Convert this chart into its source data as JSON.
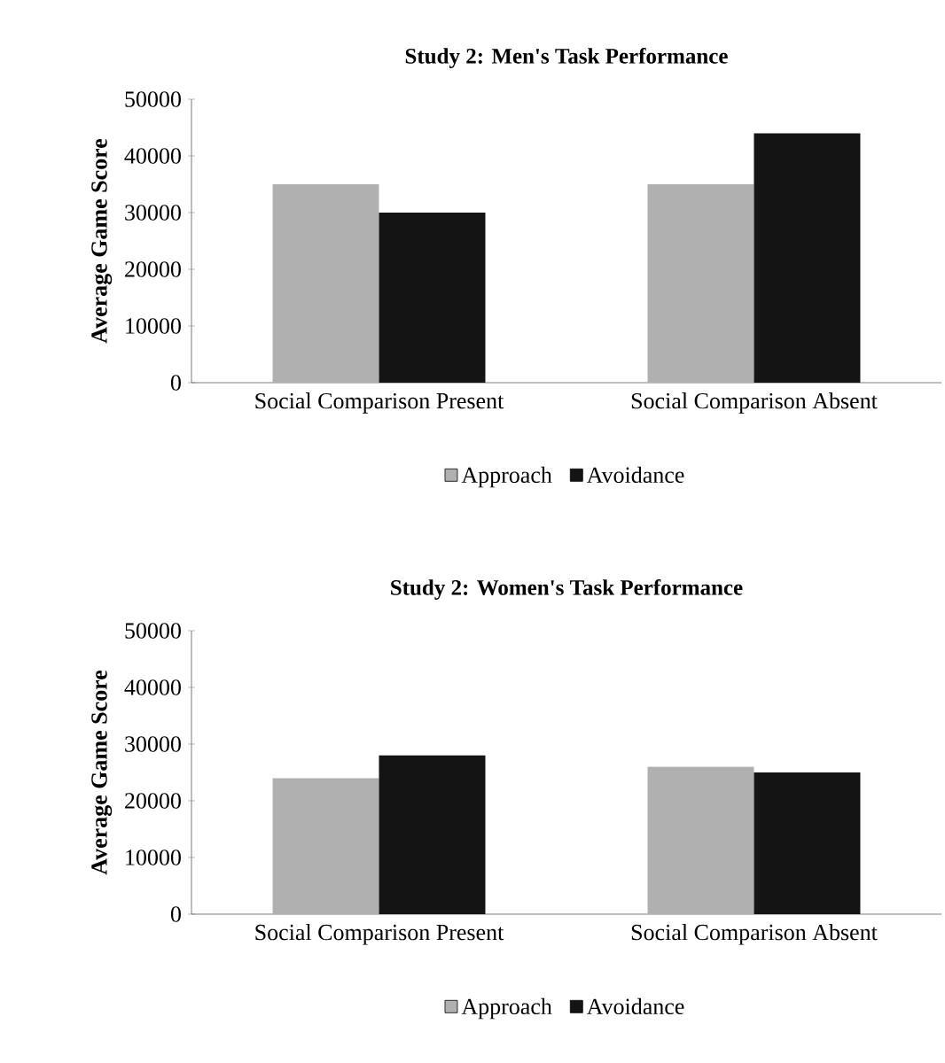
{
  "chart_data": [
    {
      "type": "bar",
      "title": "Study 2: Men's Task Performance",
      "ylabel": "Average Game Score",
      "categories": [
        "Social Comparison Present",
        "Social Comparison Absent"
      ],
      "series": [
        {
          "name": "Approach",
          "color": "#b0b0b0",
          "values": [
            35000,
            35000
          ]
        },
        {
          "name": "Avoidance",
          "color": "#141414",
          "values": [
            30000,
            44000
          ]
        }
      ],
      "ylim": [
        0,
        50000
      ],
      "yticks": [
        0,
        10000,
        20000,
        30000,
        40000,
        50000
      ],
      "legend": "bottom"
    },
    {
      "type": "bar",
      "title": "Study 2: Women's Task Performance",
      "ylabel": "Average Game Score",
      "categories": [
        "Social Comparison Present",
        "Social Comparison Absent"
      ],
      "series": [
        {
          "name": "Approach",
          "color": "#b0b0b0",
          "values": [
            24000,
            26000
          ]
        },
        {
          "name": "Avoidance",
          "color": "#141414",
          "values": [
            28000,
            25000
          ]
        }
      ],
      "ylim": [
        0,
        50000
      ],
      "yticks": [
        0,
        10000,
        20000,
        30000,
        40000,
        50000
      ],
      "legend": "bottom"
    }
  ]
}
